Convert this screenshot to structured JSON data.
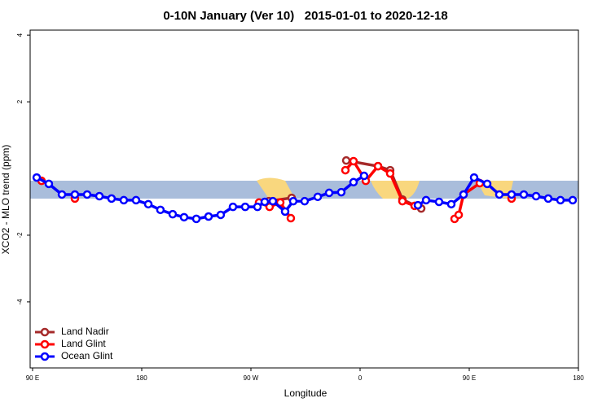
{
  "chart_data": {
    "type": "line",
    "title": "0-10N January (Ver 10)   2015-01-01 to 2020-12-18",
    "xlabel": "Longitude",
    "ylabel": "XCO2 - MLO trend (ppm)",
    "xlim": [
      88,
      540
    ],
    "ylim": [
      -5.98,
      4.15
    ],
    "xticks": [
      {
        "value": 90,
        "label": "90 E"
      },
      180,
      {
        "value": 270,
        "label": "90 W"
      },
      {
        "value": 360,
        "label": "0"
      },
      {
        "value": 450,
        "label": "90 E"
      },
      {
        "value": 540,
        "label": "180"
      }
    ],
    "yticks": [
      -4,
      -2,
      2,
      4
    ],
    "legend": "bottom-left",
    "series": [
      {
        "name": "Land Nadir",
        "color": "#a52a2a",
        "x": [
          284.8,
          303.6,
          null,
          348.6,
          374.8,
          384.8,
          394.9,
          410.4
        ],
        "values": [
          -0.98,
          -0.88,
          null,
          0.24,
          0.07,
          -0.05,
          -0.93,
          -1.2
        ]
      },
      {
        "name": "Land Glint",
        "color": "#ff0000",
        "x": [
          97.4,
          null,
          124.9,
          null,
          276.7,
          285.4,
          294.2,
          302.9,
          null,
          347.9,
          354.6,
          364.7,
          374.8,
          384.8,
          394.9,
          405.0,
          null,
          437.9,
          441.3,
          445.3,
          458.7,
          null,
          484.9
        ],
        "values": [
          -0.37,
          null,
          -0.9,
          null,
          -1.02,
          -1.15,
          -1.02,
          -1.49,
          null,
          -0.05,
          0.22,
          -0.37,
          0.07,
          -0.15,
          -0.98,
          -1.12,
          null,
          -1.51,
          -1.39,
          -0.78,
          -0.44,
          null,
          -0.9
        ]
      },
      {
        "name": "Ocean Glint",
        "color": "#0000ff",
        "x": [
          93.4,
          103.4,
          114.2,
          124.9,
          135.0,
          145.1,
          155.1,
          165.2,
          175.3,
          185.4,
          195.4,
          205.5,
          214.9,
          225.0,
          235.1,
          245.1,
          255.2,
          265.3,
          275.4,
          281.4,
          288.1,
          298.2,
          304.9,
          314.3,
          325.1,
          334.5,
          344.5,
          354.6,
          363.3,
          null,
          407.7,
          414.4,
          425.1,
          435.2,
          445.3,
          454.0,
          464.8,
          474.8,
          484.9,
          495.0,
          505.1,
          515.1,
          525.2,
          535.3
        ],
        "values": [
          -0.27,
          -0.46,
          -0.78,
          -0.78,
          -0.78,
          -0.83,
          -0.9,
          -0.95,
          -0.95,
          -1.07,
          -1.24,
          -1.37,
          -1.46,
          -1.51,
          -1.44,
          -1.39,
          -1.15,
          -1.15,
          -1.15,
          -1.0,
          -0.98,
          -1.29,
          -0.98,
          -0.98,
          -0.85,
          -0.73,
          -0.71,
          -0.41,
          -0.22,
          null,
          -1.1,
          -0.95,
          -1.0,
          -1.07,
          -0.78,
          -0.27,
          -0.46,
          -0.78,
          -0.78,
          -0.78,
          -0.83,
          -0.9,
          -0.95,
          -0.95
        ]
      }
    ]
  }
}
